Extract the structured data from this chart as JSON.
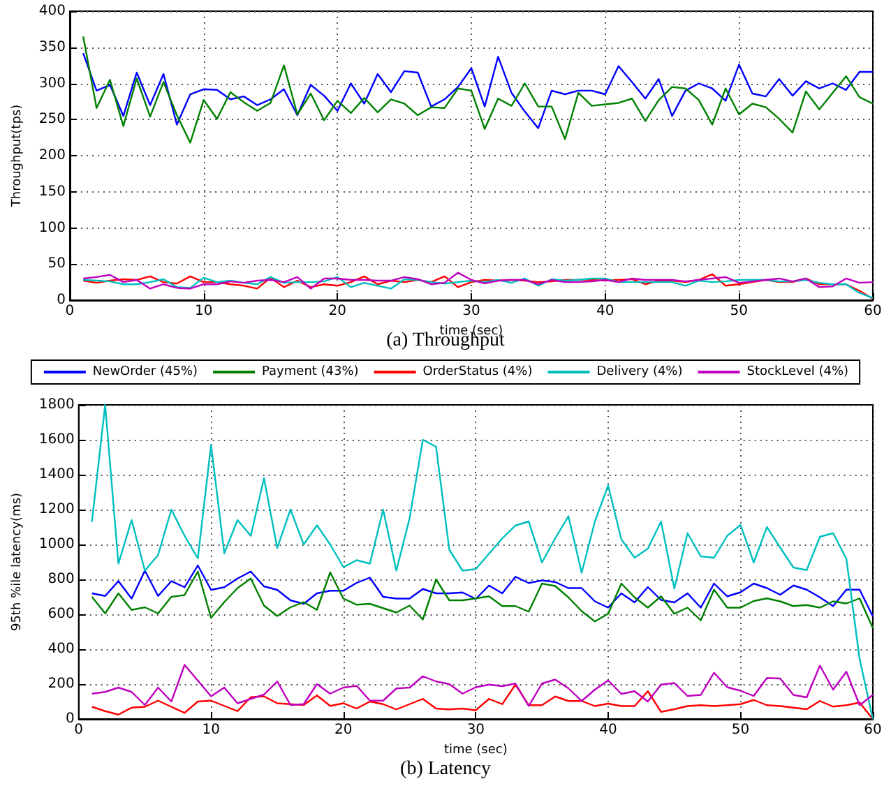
{
  "chart_data": [
    {
      "type": "line",
      "title": "(a) Throughput",
      "xlabel": "time (sec)",
      "ylabel": "Throughput(tps)",
      "x": [
        1,
        2,
        3,
        4,
        5,
        6,
        7,
        8,
        9,
        10,
        11,
        12,
        13,
        14,
        15,
        16,
        17,
        18,
        19,
        20,
        21,
        22,
        23,
        24,
        25,
        26,
        27,
        28,
        29,
        30,
        31,
        32,
        33,
        34,
        35,
        36,
        37,
        38,
        39,
        40,
        41,
        42,
        43,
        44,
        45,
        46,
        47,
        48,
        49,
        50,
        51,
        52,
        53,
        54,
        55,
        56,
        57,
        58,
        59,
        60
      ],
      "xlim": [
        0,
        60
      ],
      "xticks": [
        0,
        10,
        20,
        30,
        40,
        50,
        60
      ],
      "ylim": [
        0,
        400
      ],
      "yticks": [
        0,
        50,
        100,
        150,
        200,
        250,
        300,
        350,
        400
      ],
      "grid": true,
      "legend": false,
      "marker": "none",
      "line_style": "solid",
      "series": [
        {
          "color": "#0000ff",
          "values": [
            342,
            290,
            298,
            255,
            315,
            270,
            313,
            243,
            285,
            292,
            291,
            278,
            282,
            270,
            278,
            292,
            256,
            298,
            283,
            262,
            300,
            272,
            313,
            288,
            317,
            315,
            268,
            278,
            295,
            321,
            268,
            337,
            287,
            261,
            238,
            290,
            285,
            290,
            290,
            285,
            324,
            302,
            279,
            306,
            255,
            290,
            300,
            293,
            276,
            326,
            286,
            282,
            306,
            283,
            303,
            293,
            300,
            291,
            316,
            316
          ]
        },
        {
          "color": "#008000",
          "values": [
            365,
            266,
            305,
            241,
            307,
            254,
            302,
            256,
            218,
            277,
            251,
            288,
            274,
            262,
            273,
            325,
            257,
            286,
            249,
            276,
            259,
            280,
            260,
            278,
            272,
            256,
            267,
            266,
            293,
            290,
            237,
            279,
            269,
            300,
            268,
            268,
            223,
            287,
            269,
            271,
            273,
            279,
            248,
            277,
            295,
            293,
            277,
            243,
            293,
            257,
            272,
            267,
            251,
            232,
            289,
            264,
            287,
            310,
            281,
            272
          ]
        },
        {
          "color": "#ff0000",
          "values": [
            27,
            24,
            27,
            29,
            28,
            33,
            25,
            23,
            33,
            25,
            25,
            22,
            20,
            16,
            31,
            18,
            27,
            18,
            22,
            20,
            25,
            33,
            22,
            27,
            25,
            28,
            25,
            33,
            18,
            25,
            28,
            27,
            28,
            27,
            25,
            26,
            28,
            28,
            28,
            27,
            28,
            29,
            22,
            27,
            27,
            25,
            28,
            36,
            20,
            22,
            25,
            28,
            25,
            25,
            30,
            22,
            22,
            22,
            13,
            2
          ]
        },
        {
          "color": "#00bfbf",
          "values": [
            28,
            27,
            26,
            22,
            22,
            25,
            29,
            18,
            17,
            31,
            25,
            27,
            24,
            22,
            32,
            24,
            25,
            25,
            26,
            32,
            18,
            24,
            20,
            16,
            29,
            28,
            25,
            23,
            25,
            27,
            25,
            28,
            24,
            30,
            20,
            29,
            27,
            28,
            30,
            30,
            25,
            25,
            25,
            25,
            25,
            20,
            27,
            25,
            26,
            28,
            28,
            28,
            26,
            26,
            28,
            24,
            22,
            22,
            10,
            3
          ]
        },
        {
          "color": "#bf00bf",
          "values": [
            30,
            32,
            35,
            25,
            28,
            16,
            22,
            17,
            16,
            22,
            22,
            26,
            24,
            27,
            28,
            25,
            32,
            16,
            30,
            30,
            28,
            28,
            27,
            27,
            32,
            29,
            22,
            24,
            38,
            28,
            23,
            27,
            28,
            28,
            22,
            28,
            25,
            25,
            26,
            28,
            25,
            30,
            28,
            28,
            28,
            26,
            28,
            30,
            32,
            24,
            26,
            28,
            30,
            26,
            30,
            18,
            19,
            30,
            24,
            25
          ]
        }
      ]
    },
    {
      "type": "line",
      "title": "(b) Latency",
      "xlabel": "time (sec)",
      "ylabel": "95th %ile latency(ms)",
      "x": [
        1,
        2,
        3,
        4,
        5,
        6,
        7,
        8,
        9,
        10,
        11,
        12,
        13,
        14,
        15,
        16,
        17,
        18,
        19,
        20,
        21,
        22,
        23,
        24,
        25,
        26,
        27,
        28,
        29,
        30,
        31,
        32,
        33,
        34,
        35,
        36,
        37,
        38,
        39,
        40,
        41,
        42,
        43,
        44,
        45,
        46,
        47,
        48,
        49,
        50,
        51,
        52,
        53,
        54,
        55,
        56,
        57,
        58,
        59,
        60
      ],
      "xlim": [
        0,
        60
      ],
      "xticks": [
        0,
        10,
        20,
        30,
        40,
        50,
        60
      ],
      "ylim": [
        0,
        1800
      ],
      "yticks": [
        0,
        200,
        400,
        600,
        800,
        1000,
        1200,
        1400,
        1600,
        1800
      ],
      "grid": true,
      "legend": "top",
      "marker": "none",
      "line_style": "solid",
      "series": [
        {
          "name": "NewOrder (45%)",
          "color": "#0000ff",
          "values": [
            720,
            705,
            790,
            690,
            850,
            705,
            790,
            755,
            880,
            740,
            755,
            805,
            845,
            760,
            740,
            680,
            660,
            720,
            735,
            735,
            780,
            810,
            700,
            690,
            690,
            745,
            720,
            720,
            725,
            688,
            765,
            720,
            815,
            779,
            794,
            785,
            750,
            750,
            674,
            638,
            720,
            668,
            756,
            682,
            668,
            720,
            638,
            776,
            703,
            726,
            776,
            750,
            712,
            765,
            741,
            697,
            647,
            741,
            741,
            588
          ]
        },
        {
          "name": "Payment (43%)",
          "color": "#008000",
          "values": [
            700,
            605,
            720,
            625,
            640,
            605,
            700,
            710,
            845,
            580,
            670,
            750,
            805,
            650,
            590,
            640,
            670,
            625,
            840,
            690,
            655,
            660,
            635,
            610,
            650,
            570,
            800,
            680,
            680,
            691,
            703,
            647,
            647,
            615,
            776,
            762,
            697,
            618,
            559,
            603,
            776,
            697,
            638,
            703,
            603,
            638,
            565,
            741,
            638,
            638,
            676,
            691,
            674,
            647,
            653,
            638,
            674,
            662,
            691,
            521
          ]
        },
        {
          "name": "OrderStatus (4%)",
          "color": "#ff0000",
          "values": [
            70,
            45,
            25,
            65,
            70,
            105,
            70,
            35,
            100,
            105,
            75,
            45,
            125,
            130,
            90,
            85,
            80,
            135,
            75,
            90,
            60,
            100,
            85,
            55,
            85,
            115,
            60,
            55,
            60,
            50,
            115,
            85,
            197,
            79,
            79,
            129,
            103,
            103,
            74,
            88,
            74,
            74,
            159,
            41,
            56,
            74,
            79,
            74,
            79,
            85,
            109,
            79,
            74,
            65,
            56,
            103,
            71,
            79,
            94,
            0
          ]
        },
        {
          "name": "Delivery (4%)",
          "color": "#00bfbf",
          "values": [
            1130,
            1800,
            890,
            1140,
            850,
            940,
            1200,
            1050,
            920,
            1570,
            950,
            1140,
            1050,
            1380,
            980,
            1200,
            1000,
            1110,
            1000,
            870,
            910,
            890,
            1200,
            850,
            1150,
            1600,
            1560,
            970,
            850,
            859,
            947,
            1035,
            1109,
            1132,
            897,
            1035,
            1162,
            838,
            1132,
            1338,
            1029,
            924,
            976,
            1132,
            747,
            1065,
            932,
            924,
            1050,
            1112,
            897,
            1100,
            982,
            868,
            853,
            1044,
            1065,
            918,
            344,
            0
          ]
        },
        {
          "name": "StockLevel (4%)",
          "color": "#bf00bf",
          "values": [
            145,
            155,
            180,
            155,
            80,
            180,
            100,
            310,
            220,
            130,
            180,
            90,
            115,
            140,
            215,
            80,
            85,
            200,
            145,
            180,
            190,
            105,
            105,
            175,
            180,
            245,
            215,
            200,
            145,
            182,
            197,
            188,
            203,
            74,
            203,
            226,
            176,
            103,
            168,
            221,
            144,
            159,
            100,
            197,
            206,
            132,
            138,
            265,
            182,
            162,
            132,
            235,
            232,
            138,
            124,
            306,
            168,
            271,
            79,
            138
          ]
        }
      ]
    }
  ]
}
